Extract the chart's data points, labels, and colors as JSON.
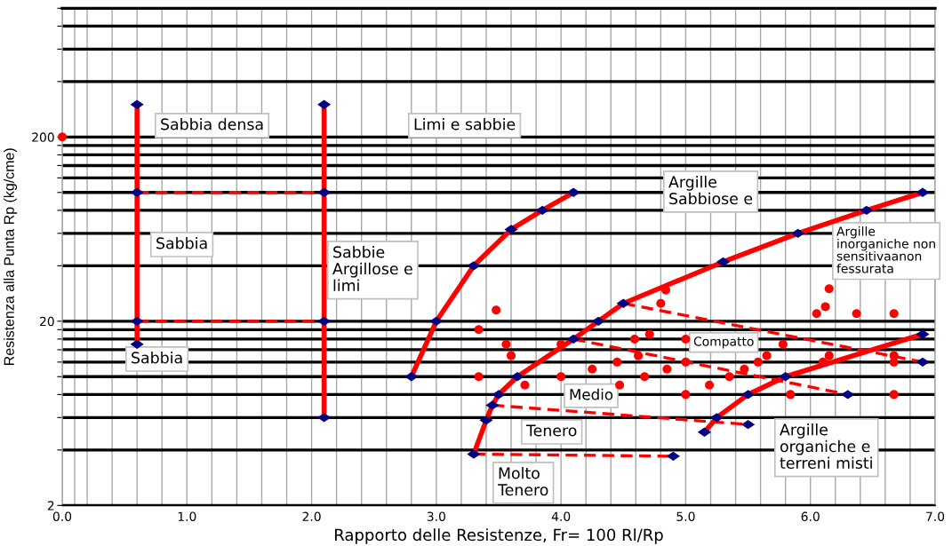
{
  "chart_data": {
    "type": "line",
    "xlabel": "Rapporto delle Resistenze, Fr= 100 Rl/Rp",
    "ylabel": "Resistenza alla Punta Rp (kg/cme)",
    "annotations": [
      "Sabbia densa",
      "Limi e sabbie",
      "Argille\nSabbiose e",
      "Sabbia",
      "Sabbie\nArgillose e\nlimi",
      "Argille\ninorganiche non\nsensitivaanon\nfessurata",
      "Sabbia",
      "Compatto",
      "Medio",
      "Tenero",
      "Molto\nTenero",
      "Argille\norganiche e\nterreni misti"
    ],
    "xlim": [
      0,
      7
    ],
    "ylim": [
      2,
      1000
    ],
    "log": "y",
    "grid": true,
    "xticks": [
      {
        "value": 0,
        "label": "0.0"
      },
      {
        "value": 0.1,
        "label": null
      },
      {
        "value": 0.2,
        "label": null
      },
      {
        "value": 0.4,
        "label": null
      },
      {
        "value": 0.6,
        "label": null
      },
      {
        "value": 0.8,
        "label": null
      },
      {
        "value": 1,
        "label": "1.0"
      },
      {
        "value": 1.2,
        "label": null
      },
      {
        "value": 1.4,
        "label": null
      },
      {
        "value": 1.6,
        "label": null
      },
      {
        "value": 1.8,
        "label": null
      },
      {
        "value": 2,
        "label": "2.0"
      },
      {
        "value": 2.2,
        "label": null
      },
      {
        "value": 2.4,
        "label": null
      },
      {
        "value": 2.6,
        "label": null
      },
      {
        "value": 2.8,
        "label": null
      },
      {
        "value": 3,
        "label": "3.0"
      },
      {
        "value": 3.2,
        "label": null
      },
      {
        "value": 3.4,
        "label": null
      },
      {
        "value": 3.6,
        "label": null
      },
      {
        "value": 3.8,
        "label": null
      },
      {
        "value": 4,
        "label": "4.0"
      },
      {
        "value": 4.2,
        "label": null
      },
      {
        "value": 4.4,
        "label": null
      },
      {
        "value": 4.6,
        "label": null
      },
      {
        "value": 4.8,
        "label": null
      },
      {
        "value": 5,
        "label": "5.0"
      },
      {
        "value": 5.2,
        "label": null
      },
      {
        "value": 5.4,
        "label": null
      },
      {
        "value": 5.6,
        "label": null
      },
      {
        "value": 5.8,
        "label": null
      },
      {
        "value": 6,
        "label": "6.0"
      },
      {
        "value": 6.2,
        "label": null
      },
      {
        "value": 6.4,
        "label": null
      },
      {
        "value": 6.6,
        "label": null
      },
      {
        "value": 6.8,
        "label": null
      },
      {
        "value": 7,
        "label": "7.0"
      }
    ],
    "yticks": [
      2,
      {
        "value": 4,
        "label": null
      },
      {
        "value": 6,
        "label": null
      },
      {
        "value": 8,
        "label": null
      },
      {
        "value": 10,
        "label": null
      },
      {
        "value": 12,
        "label": null
      },
      {
        "value": 14,
        "label": null
      },
      {
        "value": 16,
        "label": null
      },
      {
        "value": 18,
        "label": null
      },
      20,
      {
        "value": 40,
        "label": null
      },
      {
        "value": 60,
        "label": null
      },
      {
        "value": 80,
        "label": null
      },
      {
        "value": 100,
        "label": null
      },
      {
        "value": 120,
        "label": null
      },
      {
        "value": 140,
        "label": null
      },
      {
        "value": 160,
        "label": null
      },
      {
        "value": 180,
        "label": null
      },
      200,
      {
        "value": 400,
        "label": null
      },
      {
        "value": 600,
        "label": null
      },
      {
        "value": 800,
        "label": null
      },
      {
        "value": 1000,
        "label": null
      }
    ],
    "series": [
      {
        "color": "#ff0000",
        "line_style": "solid",
        "marker": "none",
        "x": [
          0.6,
          0.6,
          0.6,
          0.6
        ],
        "values": [
          300,
          100,
          20,
          15
        ]
      },
      {
        "color": "#ff0000",
        "line_style": "solid",
        "marker": "none",
        "x": [
          2.1,
          2.1,
          2.1,
          2.1
        ],
        "values": [
          300,
          100,
          20,
          6
        ]
      },
      {
        "color": "#ff0000",
        "line_style": "dashed",
        "marker": "none",
        "x": [
          0.6,
          2.1
        ],
        "values": [
          100,
          100
        ]
      },
      {
        "color": "#ff0000",
        "line_style": "dashed",
        "marker": "none",
        "x": [
          0.6,
          2.1
        ],
        "values": [
          20,
          20
        ]
      },
      {
        "color": "#ff0000",
        "line_style": "solid",
        "marker": "none",
        "x": [
          2.8,
          3.0,
          3.3,
          3.6,
          3.85,
          4.1
        ],
        "values": [
          10,
          20,
          40,
          63,
          80,
          100
        ]
      },
      {
        "color": "#ff0000",
        "line_style": "solid",
        "marker": "none",
        "x": [
          3.3,
          3.4,
          3.45,
          3.5,
          3.65,
          4.1,
          4.3,
          4.5,
          5.3,
          5.9,
          6.45,
          6.9
        ],
        "values": [
          3.8,
          5.8,
          7,
          8,
          10,
          16,
          20,
          25,
          42,
          60,
          80,
          100
        ]
      },
      {
        "color": "#ff0000",
        "line_style": "dashed",
        "marker": "none",
        "x": [
          3.3,
          4.9
        ],
        "values": [
          3.8,
          3.7
        ]
      },
      {
        "color": "#ff0000",
        "line_style": "dashed",
        "marker": "none",
        "x": [
          3.45,
          5.5
        ],
        "values": [
          7,
          5.5
        ]
      },
      {
        "color": "#ff0000",
        "line_style": "dashed",
        "marker": "none",
        "x": [
          4.1,
          6.3
        ],
        "values": [
          16,
          8
        ]
      },
      {
        "color": "#ff0000",
        "line_style": "dashed",
        "marker": "none",
        "x": [
          4.5,
          6.9
        ],
        "values": [
          25,
          12
        ]
      },
      {
        "color": "#ff0000",
        "line_style": "solid",
        "marker": "none",
        "x": [
          5.15,
          5.25,
          5.5,
          5.8,
          6.9
        ],
        "values": [
          5,
          6,
          8,
          10,
          17
        ]
      },
      {
        "type": "scatter",
        "color": "#ff0000",
        "marker": "circle",
        "x": [
          0,
          3.48,
          3.34,
          3.56,
          3.6,
          3.34,
          3.71,
          4.0,
          4.0,
          4.25,
          4.45,
          4.47,
          4.59,
          4.84,
          4.8,
          4.71,
          5.0,
          4.62,
          5.0,
          4.85,
          4.67,
          5.0,
          5.19,
          5.35,
          5.47,
          5.58,
          5.65,
          5.78,
          5.84,
          6.1,
          6.15,
          6.67,
          6.67,
          6.67,
          6.12,
          6.05,
          6.37,
          6.67,
          6.15
        ],
        "values": [
          200,
          23,
          18,
          15,
          13,
          10,
          9,
          15,
          10,
          11,
          12,
          9,
          16,
          29.5,
          25,
          17,
          16,
          13,
          12,
          11,
          10,
          8,
          9,
          10,
          11,
          12,
          13,
          15,
          8,
          12,
          13,
          13,
          12,
          8,
          24,
          22,
          22,
          22,
          30
        ]
      },
      {
        "type": "scatter",
        "color": "#000080",
        "marker": "diamond",
        "x": [
          0.6,
          0.6,
          0.6,
          0.6,
          2.1,
          2.1,
          2.1,
          2.1,
          2.8,
          3.0,
          3.3,
          3.6,
          3.85,
          4.1,
          3.3,
          3.4,
          3.45,
          3.5,
          3.65,
          4.1,
          4.3,
          4.5,
          5.3,
          5.9,
          6.45,
          6.9,
          4.9,
          5.5,
          6.3,
          6.9,
          5.15,
          5.25,
          5.5,
          5.8,
          6.9
        ],
        "values": [
          300,
          100,
          20,
          15,
          300,
          100,
          20,
          6,
          10,
          20,
          40,
          63,
          80,
          100,
          3.8,
          5.8,
          7,
          8,
          10,
          16,
          20,
          25,
          42,
          60,
          80,
          100,
          3.7,
          5.5,
          8,
          12,
          5,
          6,
          8,
          10,
          17
        ]
      }
    ]
  }
}
